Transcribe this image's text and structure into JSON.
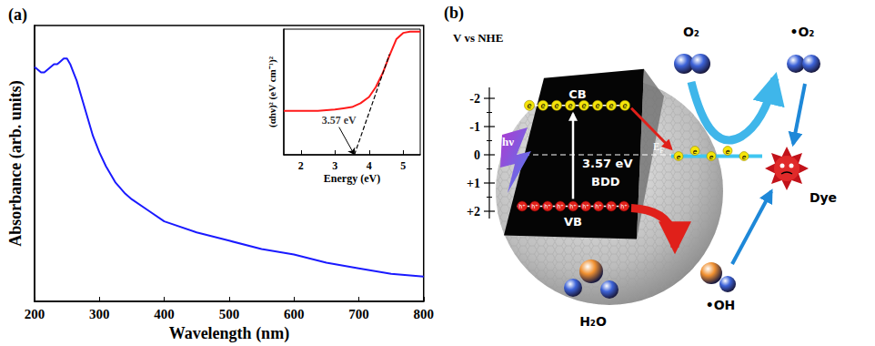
{
  "chart_data": [
    {
      "type": "line",
      "title": "(a)",
      "x_label": "Wavelength (nm)",
      "y_label": "Absorbance (arb. units)",
      "x": [
        200,
        205,
        210,
        215,
        220,
        225,
        230,
        235,
        240,
        245,
        250,
        255,
        260,
        265,
        270,
        280,
        290,
        300,
        310,
        325,
        340,
        350,
        375,
        400,
        450,
        500,
        550,
        600,
        650,
        700,
        750,
        800
      ],
      "values": [
        0.85,
        0.84,
        0.83,
        0.83,
        0.84,
        0.85,
        0.86,
        0.86,
        0.87,
        0.88,
        0.88,
        0.86,
        0.83,
        0.8,
        0.76,
        0.68,
        0.6,
        0.54,
        0.49,
        0.43,
        0.39,
        0.37,
        0.33,
        0.29,
        0.25,
        0.22,
        0.19,
        0.17,
        0.14,
        0.12,
        0.1,
        0.09
      ],
      "color": "#1a1aff",
      "xlim": [
        200,
        800
      ],
      "xticks": [
        200,
        300,
        400,
        500,
        600,
        700,
        800
      ],
      "ylim": [
        0,
        1
      ],
      "tick_labels": "x"
    },
    {
      "type": "line",
      "x_label": "Energy (eV)",
      "y_label": "(αhν)² (eV cm⁻¹)²",
      "xlim": [
        1.5,
        5.5
      ],
      "xticks": [
        2,
        3,
        4,
        5
      ],
      "ylim": [
        0,
        1
      ],
      "tick_labels": "x",
      "series": [
        {
          "color": "#ff1a1a",
          "line_style": "solid",
          "x": [
            1.5,
            2,
            2.5,
            3,
            3.25,
            3.5,
            3.75,
            4,
            4.2,
            4.4,
            4.6,
            4.8,
            5,
            5.2,
            5.5
          ],
          "values": [
            0.35,
            0.35,
            0.35,
            0.36,
            0.37,
            0.38,
            0.41,
            0.46,
            0.54,
            0.65,
            0.79,
            0.92,
            0.97,
            0.98,
            0.98
          ]
        },
        {
          "color": "#000000",
          "line_style": "dashed",
          "x": [
            3.57,
            4.6
          ],
          "values": [
            0,
            0.8
          ]
        }
      ],
      "annotations": [
        {
          "text": "3.57 eV",
          "x": 3.57,
          "y": 0
        }
      ]
    }
  ],
  "diagram": {
    "title": "(b)",
    "potential_axis": {
      "label": "V vs NHE",
      "ticks": [
        -2,
        -1,
        0,
        {
          "value": 1,
          "label": "+1"
        },
        {
          "value": 2,
          "label": "+2"
        }
      ]
    },
    "levels": {
      "cb": -1.75,
      "vb": 1.82,
      "fermi": 0,
      "acceptor": 0.05
    },
    "labels": {
      "cb": "CB",
      "vb": "VB",
      "band_gap": "3.57 eV",
      "material": "BDD",
      "fermi": "E",
      "fermi_subscript": "F",
      "light": "hν",
      "electron": "e",
      "hole": "h⁺"
    },
    "species": {
      "oxygen": "O₂",
      "superoxide": "•O₂",
      "water": "H₂O",
      "hydroxyl": "•OH",
      "dye": "Dye"
    }
  }
}
